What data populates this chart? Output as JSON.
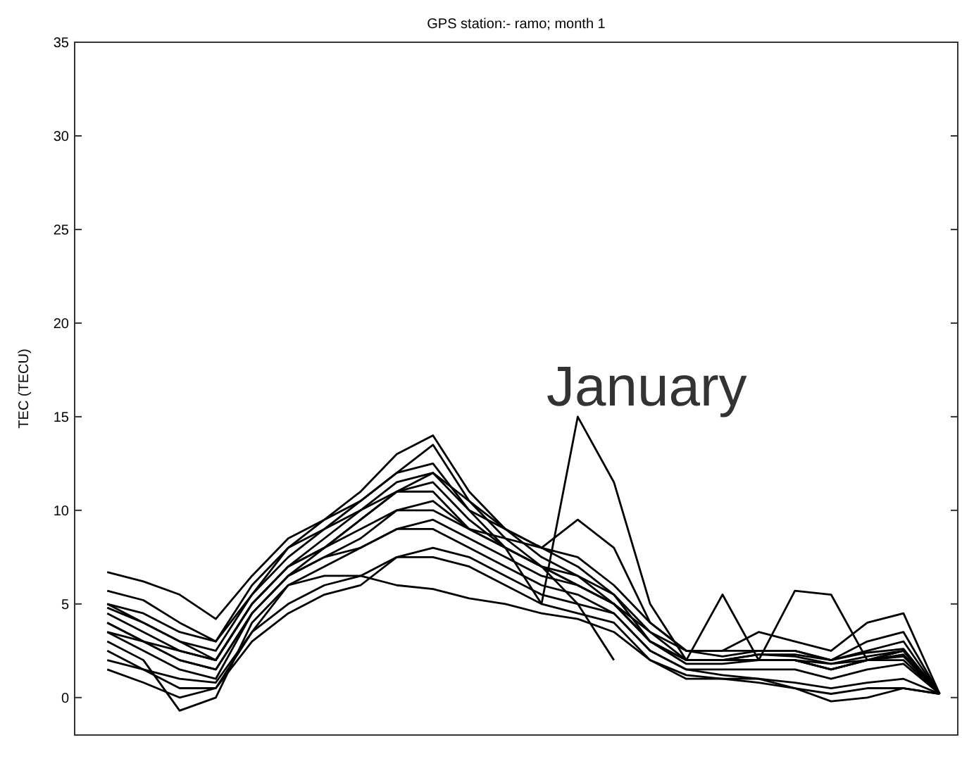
{
  "chart_data": {
    "type": "line",
    "title": "GPS station:- ramo; month 1",
    "ylabel": "TEC (TECU)",
    "annotations": [
      "January"
    ],
    "categories": [
      null,
      null,
      null,
      null,
      null,
      null,
      null,
      null,
      null,
      null,
      null,
      null,
      null,
      null,
      null,
      null,
      null,
      null,
      null,
      null,
      null,
      null,
      null,
      null
    ],
    "ylim": [
      -2,
      35
    ],
    "yticks": [
      0,
      5,
      10,
      15,
      20,
      25,
      30,
      35
    ],
    "tick_labels": "y",
    "series": [
      {
        "color": "#000000",
        "values": [
          6.7,
          6.2,
          5.5,
          4.2,
          6.5,
          8.5,
          9.5,
          11,
          13,
          14,
          11,
          9,
          8,
          7.5,
          6,
          4,
          2.5,
          2.2,
          2.5,
          2.5,
          2,
          2.5,
          3,
          0.2
        ]
      },
      {
        "color": "#000000",
        "values": [
          5.7,
          5.2,
          4,
          3,
          6,
          8,
          9.5,
          10.5,
          12,
          13.5,
          10.5,
          8.5,
          7,
          6,
          5,
          3.5,
          2,
          2,
          2.3,
          2.2,
          1.8,
          2.2,
          2.5,
          0.2
        ]
      },
      {
        "color": "#000000",
        "values": [
          4.5,
          3.5,
          2.5,
          2,
          5,
          7,
          8,
          9.5,
          11,
          11.5,
          9.5,
          8,
          7,
          6.5,
          5,
          3,
          2,
          2,
          2,
          2,
          1.5,
          2,
          2.3,
          0.2
        ]
      },
      {
        "color": "#000000",
        "values": [
          3.5,
          2.5,
          1.5,
          1,
          4.5,
          6.5,
          7.5,
          8.5,
          10,
          10.5,
          9,
          8,
          7,
          6,
          5,
          3,
          1.8,
          1.8,
          2,
          2,
          1.8,
          2,
          2,
          0.2
        ]
      },
      {
        "color": "#000000",
        "values": [
          2.5,
          1.5,
          0.5,
          0.5,
          3.5,
          6,
          7,
          8,
          9,
          9,
          8,
          7,
          6,
          5.5,
          4.5,
          2.5,
          1.5,
          1.5,
          1.5,
          1.5,
          1,
          1.5,
          1.8,
          0.2
        ]
      },
      {
        "color": "#000000",
        "values": [
          1.5,
          0.8,
          0,
          0.5,
          3,
          4.5,
          5.5,
          6,
          7.5,
          7.5,
          7,
          6,
          5,
          4.5,
          4,
          2,
          1,
          1,
          1,
          0.8,
          0.5,
          0.8,
          1,
          0.2
        ]
      },
      {
        "color": "#000000",
        "values": [
          3,
          2,
          -0.7,
          0,
          4,
          6,
          6.5,
          6.5,
          6,
          5.8,
          5.3,
          5,
          4.5,
          4.2,
          3.5,
          2,
          1.2,
          1,
          0.8,
          0.5,
          -0.2,
          0,
          0.5,
          0.2
        ]
      },
      {
        "color": "#000000",
        "values": [
          4,
          3,
          2,
          1.5,
          4.5,
          6.5,
          8,
          9,
          10,
          10,
          9,
          8,
          5,
          15,
          11.5,
          5,
          2,
          2,
          2,
          2,
          1.5,
          2,
          2.5,
          0.2
        ]
      },
      {
        "color": "#000000",
        "values": [
          5,
          4,
          3,
          2,
          5,
          7,
          8,
          9.5,
          11,
          12,
          10,
          8,
          7,
          5,
          2,
          null,
          null,
          2,
          2,
          2,
          1.5,
          2,
          2.2,
          0.2
        ]
      },
      {
        "color": "#000000",
        "values": [
          3.5,
          3,
          2,
          1.5,
          4.5,
          6.5,
          7.5,
          8,
          9,
          9.5,
          8.5,
          7.5,
          6.5,
          6,
          5,
          3,
          2,
          5.5,
          2,
          5.7,
          5.5,
          2,
          2.5,
          0.2
        ]
      },
      {
        "color": "#000000",
        "values": [
          4,
          3,
          2.5,
          2,
          5,
          7,
          8.5,
          10,
          11,
          11,
          9,
          8.5,
          8,
          9.5,
          8,
          4,
          2.5,
          2.5,
          3.5,
          3,
          2.5,
          4,
          4.5,
          0.2
        ]
      },
      {
        "color": "#000000",
        "values": [
          5,
          4.5,
          3.5,
          3,
          5.5,
          7.5,
          9,
          10.5,
          12,
          12.5,
          10,
          9,
          8,
          7,
          5.5,
          3.5,
          2.5,
          2.5,
          2.5,
          2.5,
          2,
          3,
          3.5,
          0.2
        ]
      },
      {
        "color": "#000000",
        "values": [
          2,
          1.5,
          1,
          0.8,
          3.5,
          5,
          6,
          6.5,
          7.5,
          8,
          7.5,
          6.5,
          5.5,
          5,
          4.5,
          2.5,
          1.5,
          1.2,
          1,
          0.5,
          0.2,
          0.5,
          0.5,
          0.2
        ]
      },
      {
        "color": "#000000",
        "values": [
          4.8,
          4,
          3,
          2.5,
          5.5,
          8,
          9,
          10,
          11.5,
          12,
          10.5,
          9,
          7.5,
          6.5,
          5.5,
          3,
          2,
          2,
          2.3,
          2.3,
          2,
          2.4,
          2.6,
          0.2
        ]
      }
    ]
  }
}
